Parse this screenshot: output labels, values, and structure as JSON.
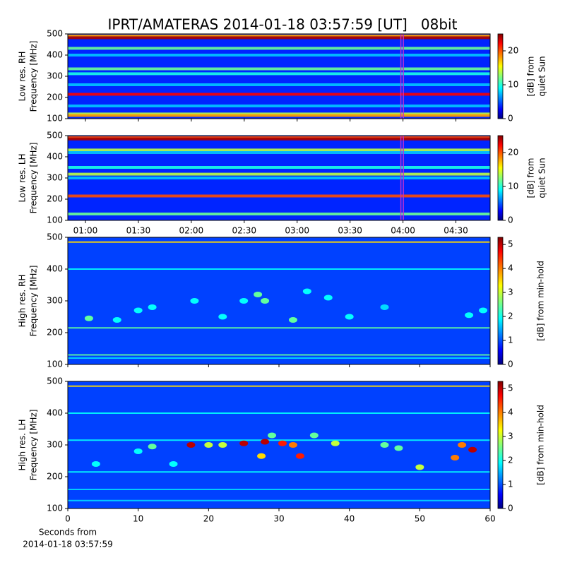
{
  "chart_data": [
    {
      "type": "heatmap",
      "title": "IPRT/AMATERAS 2014-01-18 03:57:59 [UT]   08bit",
      "ylabel": [
        "Low res. RH",
        "Frequency [MHz]"
      ],
      "ylim": [
        100,
        500
      ],
      "yticks": [
        100,
        200,
        300,
        400,
        500
      ],
      "xlim": [
        50,
        289.4
      ],
      "background": 4,
      "rows": {
        "freq": [
          490,
          482,
          432,
          400,
          335,
          312,
          260,
          215,
          160,
          122,
          115
        ],
        "db": [
          18,
          24,
          12,
          8,
          12,
          10,
          8,
          22,
          8,
          14,
          18
        ]
      },
      "highlight": {
        "x": [
          238.8,
          240.2
        ],
        "color": "#c030d0"
      },
      "colorbar": {
        "label": [
          "[dB] from",
          "quiet Sun"
        ],
        "lim": [
          0,
          25
        ],
        "ticks": [
          0,
          10,
          20
        ]
      }
    },
    {
      "type": "heatmap",
      "ylabel": [
        "Low res. LH",
        "Frequency [MHz]"
      ],
      "ylim": [
        100,
        500
      ],
      "yticks": [
        100,
        200,
        300,
        400,
        500
      ],
      "xlim": [
        50,
        289.4
      ],
      "background": 4,
      "xticks": [
        {
          "value": 60,
          "label": "01:00"
        },
        {
          "value": 90,
          "label": "01:30"
        },
        {
          "value": 120,
          "label": "02:00"
        },
        {
          "value": 150,
          "label": "02:30"
        },
        {
          "value": 180,
          "label": "03:00"
        },
        {
          "value": 210,
          "label": "03:30"
        },
        {
          "value": 240,
          "label": "04:00"
        },
        {
          "value": 270,
          "label": "04:30"
        }
      ],
      "rows": {
        "freq": [
          490,
          484,
          432,
          420,
          350,
          318,
          300,
          215,
          130
        ],
        "db": [
          20,
          24,
          14,
          8,
          10,
          14,
          8,
          20,
          12
        ]
      },
      "highlight": {
        "x": [
          238.8,
          240.2
        ],
        "color": "#c030d0"
      },
      "colorbar": {
        "label": [
          "[dB] from",
          "quiet Sun"
        ],
        "lim": [
          0,
          25
        ],
        "ticks": [
          0,
          10,
          20
        ]
      }
    },
    {
      "type": "heatmap",
      "ylabel": [
        "High res. RH",
        "Frequency [MHz]"
      ],
      "ylim": [
        100,
        500
      ],
      "yticks": [
        100,
        200,
        300,
        400,
        500
      ],
      "xlim": [
        0,
        60
      ],
      "background": 1,
      "rows": {
        "freq": [
          485,
          400,
          215,
          130,
          120
        ],
        "db": [
          3.5,
          2,
          2.5,
          2.5,
          1.8
        ]
      },
      "bursts": {
        "x": [
          3,
          7,
          10,
          12,
          18,
          25,
          27,
          28,
          32,
          37,
          40,
          45,
          57,
          59,
          34,
          22
        ],
        "y": [
          245,
          240,
          270,
          280,
          300,
          300,
          320,
          300,
          240,
          310,
          250,
          280,
          255,
          270,
          330,
          250
        ],
        "db": [
          2.5,
          2,
          2,
          2,
          2,
          2,
          2.5,
          2.5,
          2.5,
          2,
          2,
          1.8,
          2,
          2,
          2,
          2
        ]
      },
      "colorbar": {
        "label": [
          "[dB] from min-hold"
        ],
        "lim": [
          0,
          5.3
        ],
        "ticks": [
          0,
          1,
          2,
          3,
          4,
          5
        ]
      }
    },
    {
      "type": "heatmap",
      "ylabel": [
        "High res. LH",
        "Frequency [MHz]"
      ],
      "ylim": [
        100,
        500
      ],
      "yticks": [
        100,
        200,
        300,
        400,
        500
      ],
      "xlim": [
        0,
        60
      ],
      "xticks": [
        0,
        10,
        20,
        30,
        40,
        50,
        60
      ],
      "xlabel": [
        "Seconds from",
        "2014-01-18 03:57:59"
      ],
      "background": 1,
      "rows": {
        "freq": [
          485,
          400,
          315,
          215,
          160,
          125
        ],
        "db": [
          3.5,
          2,
          2,
          2,
          1.8,
          1.8
        ]
      },
      "bursts": {
        "x": [
          17.5,
          25,
          28,
          30.5,
          33,
          32,
          38,
          57.5,
          55,
          56,
          27.5,
          20,
          12,
          4,
          15,
          50,
          35,
          29,
          10,
          45,
          22,
          47
        ],
        "y": [
          300,
          305,
          310,
          305,
          265,
          300,
          305,
          285,
          260,
          300,
          265,
          300,
          295,
          240,
          240,
          230,
          330,
          330,
          280,
          300,
          300,
          290
        ],
        "db": [
          5,
          5,
          5,
          4.5,
          4.5,
          4,
          3,
          5,
          4,
          4,
          3.5,
          3,
          2.5,
          2,
          2,
          3,
          2.5,
          2.5,
          2,
          2.5,
          3,
          2.5
        ]
      },
      "colorbar": {
        "label": [
          "[dB] from min-hold"
        ],
        "lim": [
          0,
          5.3
        ],
        "ticks": [
          0,
          1,
          2,
          3,
          4,
          5
        ]
      }
    }
  ]
}
